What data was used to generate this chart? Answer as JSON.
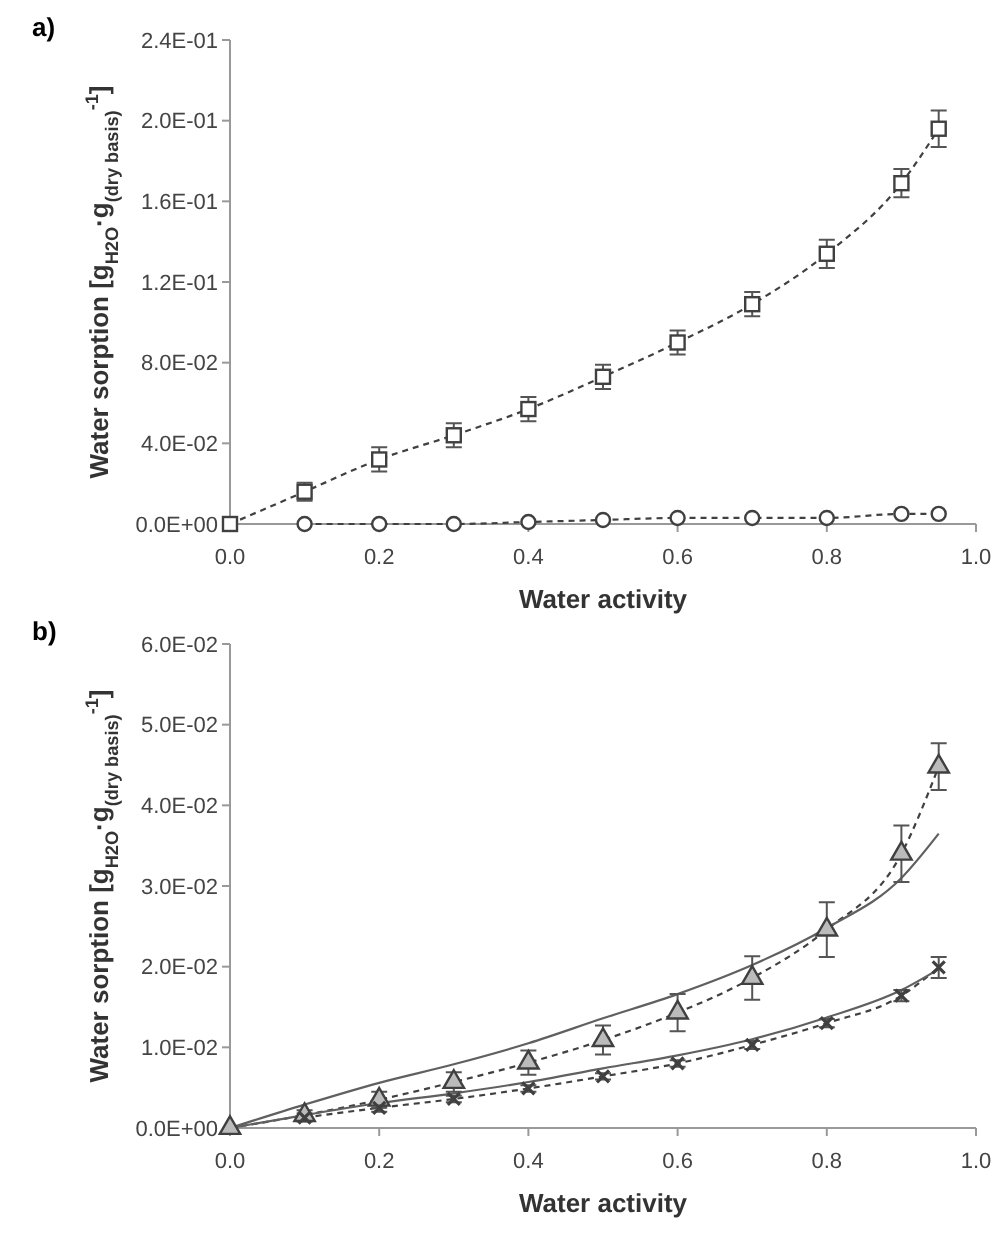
{
  "chart_data": [
    {
      "type": "line",
      "title": "a)",
      "xlabel": "Water activity",
      "ylabel": "Water sorption [g$_{H2O}$·g$_{(dry basis)}$$^{-1}$]",
      "xlim": [
        0,
        1
      ],
      "ylim": [
        0,
        0.24
      ],
      "xticks": [
        {
          "value": 0,
          "label": "0.0"
        },
        {
          "value": 0.2,
          "label": "0.2"
        },
        {
          "value": 0.4,
          "label": "0.4"
        },
        {
          "value": 0.6,
          "label": "0.6"
        },
        {
          "value": 0.8,
          "label": "0.8"
        },
        {
          "value": 1,
          "label": "1.0"
        }
      ],
      "yticks": [
        {
          "value": 0,
          "label": "0.0E+00"
        },
        {
          "value": 0.04,
          "label": "4.0E-02"
        },
        {
          "value": 0.08,
          "label": "8.0E-02"
        },
        {
          "value": 0.12,
          "label": "1.2E-01"
        },
        {
          "value": 0.16,
          "label": "1.6E-01"
        },
        {
          "value": 0.2,
          "label": "2.0E-01"
        },
        {
          "value": 0.24,
          "label": "2.4E-01"
        }
      ],
      "grid": false,
      "series": [
        {
          "color": "#404040",
          "marker": "square",
          "line_style": "dashed",
          "x": [
            0,
            0.1,
            0.2,
            0.3,
            0.4,
            0.5,
            0.6,
            0.7,
            0.8,
            0.9,
            0.95
          ],
          "values": [
            0,
            0.016,
            0.032,
            0.044,
            0.057,
            0.073,
            0.09,
            0.109,
            0.134,
            0.169,
            0.196
          ],
          "errors": [
            null,
            0.0045,
            0.006,
            0.006,
            0.006,
            0.006,
            0.006,
            0.006,
            0.007,
            0.007,
            0.009
          ]
        },
        {
          "color": "#404040",
          "marker": "circle",
          "line_style": "dashed",
          "x": [
            0.1,
            0.2,
            0.3,
            0.4,
            0.5,
            0.6,
            0.7,
            0.8,
            0.9,
            0.95
          ],
          "values": [
            0,
            0,
            0,
            0.001,
            0.002,
            0.003,
            0.003,
            0.003,
            0.005,
            0.005
          ]
        }
      ]
    },
    {
      "type": "line",
      "title": "b)",
      "xlabel": "Water activity",
      "ylabel": "Water sorption [g$_{H2O}$·g$_{(dry basis)}$$^{-1}$]",
      "xlim": [
        0,
        1
      ],
      "ylim": [
        0,
        0.06
      ],
      "xticks": [
        {
          "value": 0,
          "label": "0.0"
        },
        {
          "value": 0.2,
          "label": "0.2"
        },
        {
          "value": 0.4,
          "label": "0.4"
        },
        {
          "value": 0.6,
          "label": "0.6"
        },
        {
          "value": 0.8,
          "label": "0.8"
        },
        {
          "value": 1,
          "label": "1.0"
        }
      ],
      "yticks": [
        {
          "value": 0,
          "label": "0.0E+00"
        },
        {
          "value": 0.01,
          "label": "1.0E-02"
        },
        {
          "value": 0.02,
          "label": "2.0E-02"
        },
        {
          "value": 0.03,
          "label": "3.0E-02"
        },
        {
          "value": 0.04,
          "label": "4.0E-02"
        },
        {
          "value": 0.05,
          "label": "5.0E-02"
        },
        {
          "value": 0.06,
          "label": "6.0E-02"
        }
      ],
      "grid": false,
      "series": [
        {
          "color": "#404040",
          "marker": "triangle",
          "line_style": "dashed",
          "x": [
            0,
            0.1,
            0.2,
            0.3,
            0.4,
            0.5,
            0.6,
            0.7,
            0.8,
            0.9,
            0.95
          ],
          "values": [
            0,
            0.0016,
            0.0035,
            0.0057,
            0.0081,
            0.0109,
            0.0143,
            0.0186,
            0.0246,
            0.034,
            0.0448
          ],
          "errors": [
            null,
            0.0006,
            0.001,
            0.0012,
            0.0015,
            0.0018,
            0.0023,
            0.0027,
            0.0034,
            0.0035,
            0.0029
          ]
        },
        {
          "color": "#404040",
          "marker": "cross",
          "line_style": "dashed",
          "x": [
            0.1,
            0.2,
            0.3,
            0.4,
            0.5,
            0.6,
            0.7,
            0.8,
            0.9,
            0.95
          ],
          "values": [
            0.0013,
            0.0025,
            0.0036,
            0.0049,
            0.0064,
            0.008,
            0.0103,
            0.013,
            0.0164,
            0.0199
          ],
          "errors": [
            0.0005,
            0.0005,
            0.0004,
            0.0004,
            0.0004,
            0.0004,
            0.0005,
            0.0005,
            0.0007,
            0.0013
          ]
        },
        {
          "type": "line",
          "color": "#606060",
          "marker": "none",
          "line_style": "solid",
          "x": [
            0,
            0.1,
            0.2,
            0.3,
            0.4,
            0.5,
            0.6,
            0.7,
            0.8,
            0.9,
            0.95
          ],
          "values": [
            0,
            0.0029,
            0.0056,
            0.0079,
            0.0105,
            0.0136,
            0.0166,
            0.0202,
            0.0248,
            0.031,
            0.0365
          ]
        },
        {
          "type": "line",
          "color": "#606060",
          "marker": "none",
          "line_style": "solid",
          "x": [
            0,
            0.1,
            0.2,
            0.3,
            0.4,
            0.5,
            0.6,
            0.7,
            0.8,
            0.9,
            0.95
          ],
          "values": [
            0,
            0.0016,
            0.0031,
            0.0043,
            0.0057,
            0.0074,
            0.009,
            0.011,
            0.0137,
            0.0171,
            0.0197
          ]
        }
      ]
    }
  ]
}
